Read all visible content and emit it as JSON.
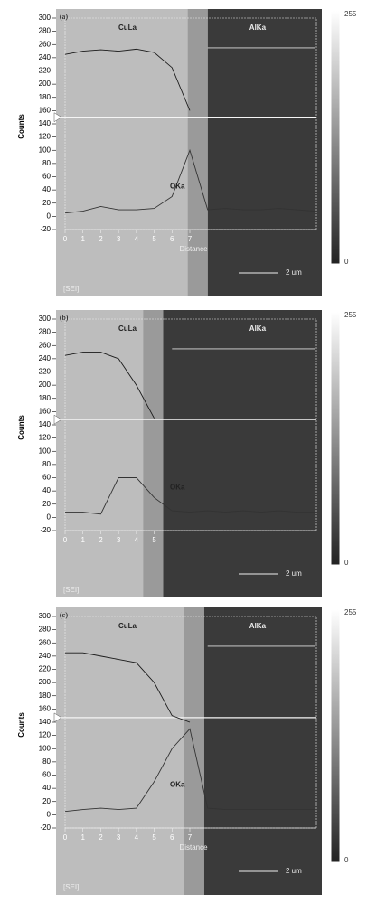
{
  "chart_data": [
    {
      "type": "line",
      "panel_label": "(a)",
      "ylabel": "Counts",
      "xlabel": "Distance",
      "x": [
        0,
        1,
        2,
        3,
        4,
        5,
        6,
        7,
        8,
        9,
        10,
        11,
        12,
        13,
        14
      ],
      "xlim": [
        0,
        14.3
      ],
      "ylim": [
        -20,
        300
      ],
      "xticks": [
        0,
        1,
        2,
        3,
        4,
        5,
        6,
        7
      ],
      "yticks": [
        -20,
        0,
        20,
        40,
        60,
        80,
        100,
        120,
        140,
        160,
        180,
        200,
        220,
        240,
        260,
        280,
        300
      ],
      "interface_x": 8,
      "hline": 150,
      "colorbar": [
        0,
        255
      ],
      "scale_bar": "2 um",
      "mode": "[SEI]",
      "series": [
        {
          "name": "CuLa",
          "color": "#1a1a1a",
          "values": [
            245,
            250,
            252,
            250,
            253,
            248,
            225,
            160,
            null,
            null,
            null,
            null,
            null,
            null,
            null
          ]
        },
        {
          "name": "AlKa",
          "color": "#dddddd",
          "values": [
            null,
            null,
            null,
            null,
            null,
            null,
            null,
            null,
            255,
            255,
            255,
            255,
            255,
            255,
            255
          ]
        },
        {
          "name": "OKa",
          "color": "#333333",
          "values": [
            5,
            8,
            15,
            10,
            10,
            12,
            30,
            100,
            10,
            12,
            10,
            10,
            12,
            10,
            8
          ]
        }
      ]
    },
    {
      "type": "line",
      "panel_label": "(b)",
      "ylabel": "Counts",
      "x": [
        0,
        1,
        2,
        3,
        4,
        5,
        6,
        7,
        8,
        9,
        10,
        11,
        12,
        13,
        14
      ],
      "xlim": [
        0,
        14.3
      ],
      "ylim": [
        -20,
        300
      ],
      "xticks": [
        0,
        1,
        2,
        3,
        4,
        5
      ],
      "yticks": [
        -20,
        0,
        20,
        40,
        60,
        80,
        100,
        120,
        140,
        160,
        180,
        200,
        220,
        240,
        260,
        280,
        300
      ],
      "interface_x": 5.5,
      "hline": 148,
      "colorbar": [
        0,
        255
      ],
      "scale_bar": "2 um",
      "mode": "[SEI]",
      "series": [
        {
          "name": "CuLa",
          "color": "#1a1a1a",
          "values": [
            245,
            250,
            250,
            240,
            200,
            150,
            null,
            null,
            null,
            null,
            null,
            null,
            null,
            null,
            null
          ]
        },
        {
          "name": "AlKa",
          "color": "#dddddd",
          "values": [
            null,
            null,
            null,
            null,
            null,
            null,
            255,
            255,
            255,
            255,
            255,
            255,
            255,
            255,
            255
          ]
        },
        {
          "name": "OKa",
          "color": "#333333",
          "values": [
            8,
            8,
            5,
            60,
            60,
            30,
            10,
            8,
            10,
            8,
            10,
            8,
            10,
            8,
            8
          ]
        }
      ]
    },
    {
      "type": "line",
      "panel_label": "(c)",
      "ylabel": "Counts",
      "xlabel": "Distance",
      "x": [
        0,
        1,
        2,
        3,
        4,
        5,
        6,
        7,
        8,
        9,
        10,
        11,
        12,
        13,
        14
      ],
      "xlim": [
        0,
        14.3
      ],
      "ylim": [
        -20,
        300
      ],
      "xticks": [
        0,
        1,
        2,
        3,
        4,
        5,
        6,
        7
      ],
      "yticks": [
        -20,
        0,
        20,
        40,
        60,
        80,
        100,
        120,
        140,
        160,
        180,
        200,
        220,
        240,
        260,
        280,
        300
      ],
      "interface_x": 7.8,
      "hline": 147,
      "colorbar": [
        0,
        255
      ],
      "scale_bar": "2 um",
      "mode": "[SEI]",
      "series": [
        {
          "name": "CuLa",
          "color": "#1a1a1a",
          "values": [
            245,
            245,
            240,
            235,
            230,
            200,
            150,
            140,
            null,
            null,
            null,
            null,
            null,
            null,
            null
          ]
        },
        {
          "name": "AlKa",
          "color": "#dddddd",
          "values": [
            null,
            null,
            null,
            null,
            null,
            null,
            null,
            null,
            255,
            255,
            255,
            255,
            255,
            255,
            255
          ]
        },
        {
          "name": "OKa",
          "color": "#333333",
          "values": [
            5,
            8,
            10,
            8,
            10,
            50,
            100,
            130,
            10,
            8,
            8,
            8,
            8,
            8,
            8
          ]
        }
      ]
    }
  ]
}
